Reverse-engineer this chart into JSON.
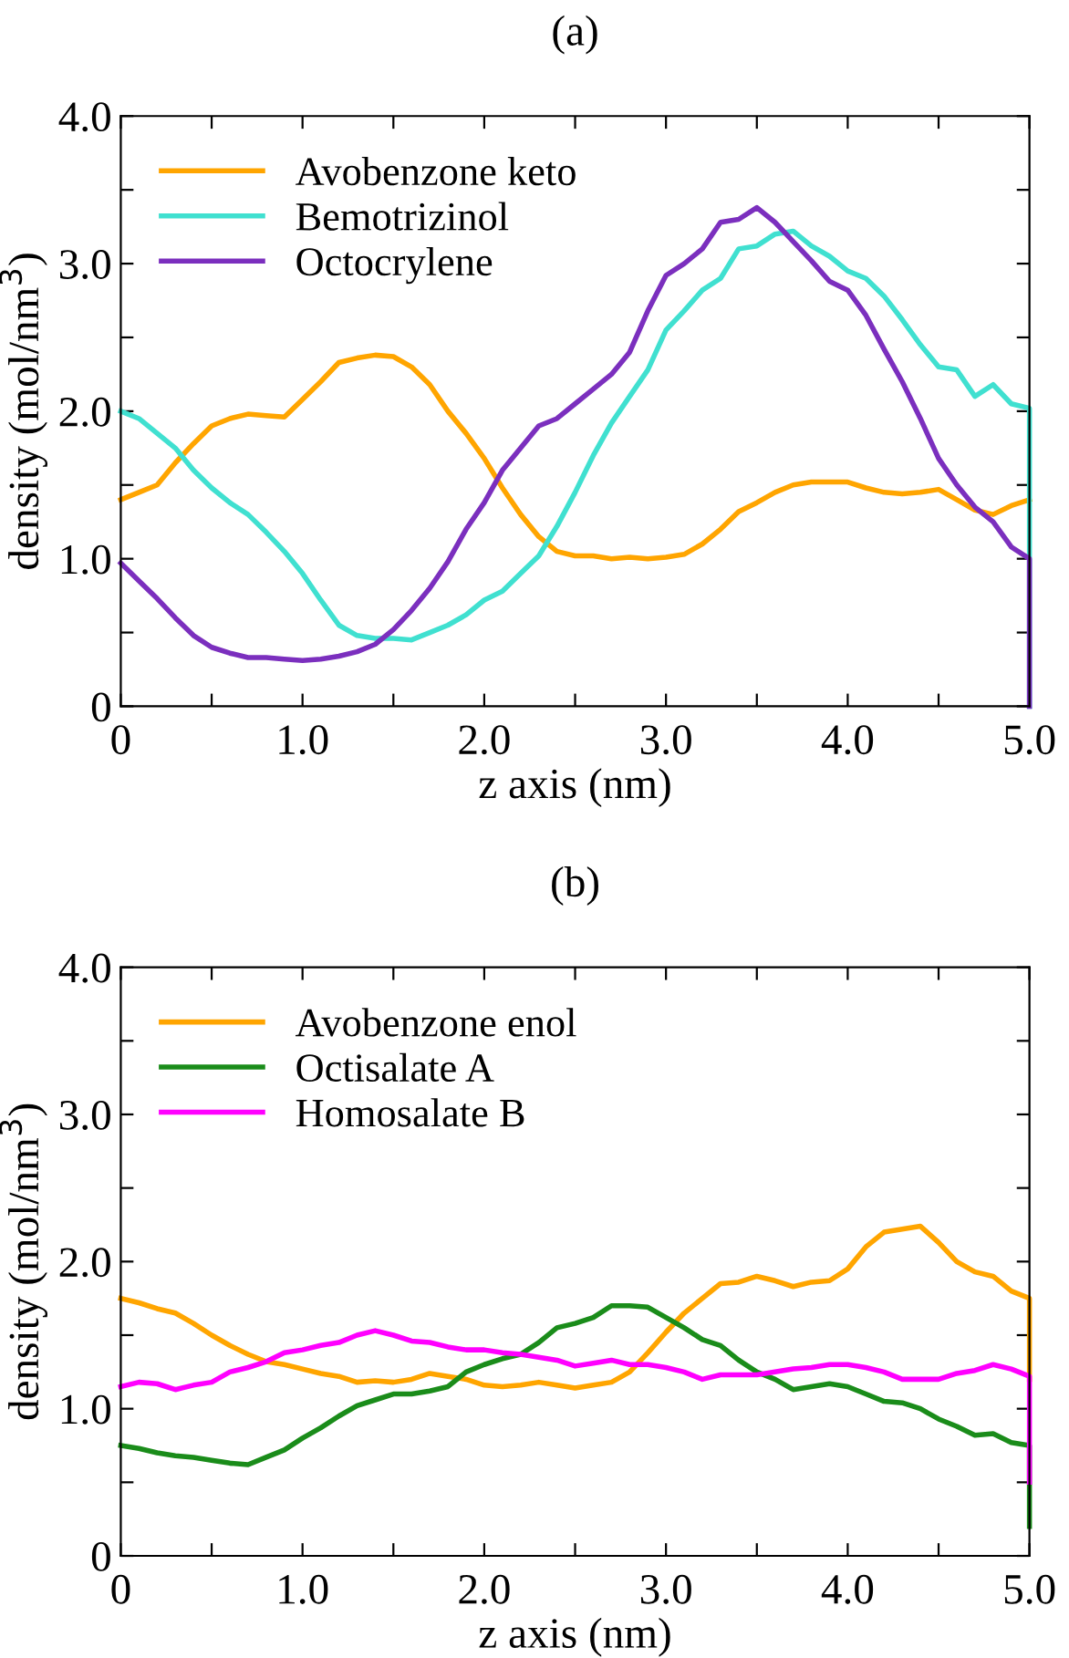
{
  "chart_data": [
    {
      "type": "line",
      "title": "(a)",
      "xlabel": "z axis (nm)",
      "ylabel": "density (mol/nm$^{3}$)",
      "x": [
        0,
        0.1,
        0.2,
        0.3,
        0.4,
        0.5,
        0.6,
        0.7,
        0.8,
        0.9,
        1.0,
        1.1,
        1.2,
        1.3,
        1.4,
        1.5,
        1.6,
        1.7,
        1.8,
        1.9,
        2.0,
        2.1,
        2.2,
        2.3,
        2.4,
        2.5,
        2.6,
        2.7,
        2.8,
        2.9,
        3.0,
        3.1,
        3.2,
        3.3,
        3.4,
        3.5,
        3.6,
        3.7,
        3.8,
        3.9,
        4.0,
        4.1,
        4.2,
        4.3,
        4.4,
        4.5,
        4.6,
        4.7,
        4.8,
        4.9,
        5.0,
        5.0
      ],
      "series": [
        {
          "name": "Avobenzone keto",
          "color": "#ffa500",
          "values": [
            1.4,
            1.45,
            1.5,
            1.65,
            1.78,
            1.9,
            1.95,
            1.98,
            1.97,
            1.96,
            2.08,
            2.2,
            2.33,
            2.36,
            2.38,
            2.37,
            2.3,
            2.18,
            2.0,
            1.85,
            1.68,
            1.48,
            1.3,
            1.15,
            1.05,
            1.02,
            1.02,
            1.0,
            1.01,
            1.0,
            1.01,
            1.03,
            1.1,
            1.2,
            1.32,
            1.38,
            1.45,
            1.5,
            1.52,
            1.52,
            1.52,
            1.48,
            1.45,
            1.44,
            1.45,
            1.47,
            1.4,
            1.33,
            1.3,
            1.36,
            1.4,
            1.4
          ]
        },
        {
          "name": "Bemotrizinol",
          "color": "#40e0d0",
          "values": [
            2.0,
            1.95,
            1.85,
            1.75,
            1.6,
            1.48,
            1.38,
            1.3,
            1.18,
            1.05,
            0.9,
            0.72,
            0.55,
            0.48,
            0.46,
            0.46,
            0.45,
            0.5,
            0.55,
            0.62,
            0.72,
            0.78,
            0.9,
            1.02,
            1.22,
            1.45,
            1.7,
            1.92,
            2.1,
            2.28,
            2.55,
            2.68,
            2.82,
            2.9,
            3.1,
            3.12,
            3.2,
            3.22,
            3.12,
            3.05,
            2.95,
            2.9,
            2.78,
            2.62,
            2.45,
            2.3,
            2.28,
            2.1,
            2.18,
            2.05,
            2.02,
            0
          ]
        },
        {
          "name": "Octocrylene",
          "color": "#7b2fbe",
          "values": [
            0.97,
            0.85,
            0.73,
            0.6,
            0.48,
            0.4,
            0.36,
            0.33,
            0.33,
            0.32,
            0.31,
            0.32,
            0.34,
            0.37,
            0.42,
            0.52,
            0.65,
            0.8,
            0.98,
            1.2,
            1.38,
            1.6,
            1.75,
            1.9,
            1.95,
            2.05,
            2.15,
            2.25,
            2.4,
            2.68,
            2.92,
            3.0,
            3.1,
            3.28,
            3.3,
            3.38,
            3.28,
            3.15,
            3.02,
            2.88,
            2.82,
            2.65,
            2.42,
            2.2,
            1.95,
            1.68,
            1.5,
            1.35,
            1.25,
            1.08,
            1.0,
            0
          ]
        }
      ],
      "xlim": [
        0,
        5.0
      ],
      "ylim": [
        0,
        4.0
      ],
      "xticks": [
        0,
        {
          "value": 0.5,
          "label": null
        },
        {
          "value": 1.0,
          "label": "1.0"
        },
        {
          "value": 1.5,
          "label": null
        },
        {
          "value": 2.0,
          "label": "2.0"
        },
        {
          "value": 2.5,
          "label": null
        },
        {
          "value": 3.0,
          "label": "3.0"
        },
        {
          "value": 3.5,
          "label": null
        },
        {
          "value": 4.0,
          "label": "4.0"
        },
        {
          "value": 4.5,
          "label": null
        },
        {
          "value": 5.0,
          "label": "5.0"
        }
      ],
      "yticks": [
        0,
        {
          "value": 0.5,
          "label": null
        },
        {
          "value": 1.0,
          "label": "1.0"
        },
        {
          "value": 1.5,
          "label": null
        },
        {
          "value": 2.0,
          "label": "2.0"
        },
        {
          "value": 2.5,
          "label": null
        },
        {
          "value": 3.0,
          "label": "3.0"
        },
        {
          "value": 3.5,
          "label": null
        },
        {
          "value": 4.0,
          "label": "4.0"
        }
      ],
      "legend": "top left",
      "grid": false,
      "line_style": "solid",
      "marker": "none"
    },
    {
      "type": "line",
      "title": "(b)",
      "xlabel": "z axis (nm)",
      "ylabel": "density (mol/nm$^{3}$)",
      "x": [
        0,
        0.1,
        0.2,
        0.3,
        0.4,
        0.5,
        0.6,
        0.7,
        0.8,
        0.9,
        1.0,
        1.1,
        1.2,
        1.3,
        1.4,
        1.5,
        1.6,
        1.7,
        1.8,
        1.9,
        2.0,
        2.1,
        2.2,
        2.3,
        2.4,
        2.5,
        2.6,
        2.7,
        2.8,
        2.9,
        3.0,
        3.1,
        3.2,
        3.3,
        3.4,
        3.5,
        3.6,
        3.7,
        3.8,
        3.9,
        4.0,
        4.1,
        4.2,
        4.3,
        4.4,
        4.5,
        4.6,
        4.7,
        4.8,
        4.9,
        5.0,
        5.0
      ],
      "series": [
        {
          "name": "Avobenzone enol",
          "color": "#ffa500",
          "values": [
            1.75,
            1.72,
            1.68,
            1.65,
            1.58,
            1.5,
            1.43,
            1.37,
            1.32,
            1.3,
            1.27,
            1.24,
            1.22,
            1.18,
            1.19,
            1.18,
            1.2,
            1.24,
            1.22,
            1.2,
            1.16,
            1.15,
            1.16,
            1.18,
            1.16,
            1.14,
            1.16,
            1.18,
            1.25,
            1.38,
            1.52,
            1.65,
            1.75,
            1.85,
            1.86,
            1.9,
            1.87,
            1.83,
            1.86,
            1.87,
            1.95,
            2.1,
            2.2,
            2.22,
            2.24,
            2.13,
            2.0,
            1.93,
            1.9,
            1.8,
            1.75,
            1.2
          ]
        },
        {
          "name": "Octisalate A",
          "color": "#1a8c1a",
          "values": [
            0.75,
            0.73,
            0.7,
            0.68,
            0.67,
            0.65,
            0.63,
            0.62,
            0.67,
            0.72,
            0.8,
            0.87,
            0.95,
            1.02,
            1.06,
            1.1,
            1.1,
            1.12,
            1.15,
            1.25,
            1.3,
            1.34,
            1.37,
            1.45,
            1.55,
            1.58,
            1.62,
            1.7,
            1.7,
            1.69,
            1.62,
            1.55,
            1.47,
            1.43,
            1.33,
            1.25,
            1.2,
            1.13,
            1.15,
            1.17,
            1.15,
            1.1,
            1.05,
            1.04,
            1.0,
            0.93,
            0.88,
            0.82,
            0.83,
            0.77,
            0.75,
            0.2
          ]
        },
        {
          "name": "Homosalate B",
          "color": "#ff00ff",
          "values": [
            1.15,
            1.18,
            1.17,
            1.13,
            1.16,
            1.18,
            1.25,
            1.28,
            1.32,
            1.38,
            1.4,
            1.43,
            1.45,
            1.5,
            1.53,
            1.5,
            1.46,
            1.45,
            1.42,
            1.4,
            1.4,
            1.38,
            1.37,
            1.35,
            1.33,
            1.29,
            1.31,
            1.33,
            1.3,
            1.3,
            1.28,
            1.25,
            1.2,
            1.23,
            1.23,
            1.23,
            1.25,
            1.27,
            1.28,
            1.3,
            1.3,
            1.28,
            1.25,
            1.2,
            1.2,
            1.2,
            1.24,
            1.26,
            1.3,
            1.27,
            1.22,
            0.5
          ]
        }
      ],
      "xlim": [
        0,
        5.0
      ],
      "ylim": [
        0,
        4.0
      ],
      "xticks": [
        0,
        {
          "value": 0.5,
          "label": null
        },
        {
          "value": 1.0,
          "label": "1.0"
        },
        {
          "value": 1.5,
          "label": null
        },
        {
          "value": 2.0,
          "label": "2.0"
        },
        {
          "value": 2.5,
          "label": null
        },
        {
          "value": 3.0,
          "label": "3.0"
        },
        {
          "value": 3.5,
          "label": null
        },
        {
          "value": 4.0,
          "label": "4.0"
        },
        {
          "value": 4.5,
          "label": null
        },
        {
          "value": 5.0,
          "label": "5.0"
        }
      ],
      "yticks": [
        0,
        {
          "value": 0.5,
          "label": null
        },
        {
          "value": 1.0,
          "label": "1.0"
        },
        {
          "value": 1.5,
          "label": null
        },
        {
          "value": 2.0,
          "label": "2.0"
        },
        {
          "value": 2.5,
          "label": null
        },
        {
          "value": 3.0,
          "label": "3.0"
        },
        {
          "value": 3.5,
          "label": null
        },
        {
          "value": 4.0,
          "label": "4.0"
        }
      ],
      "legend": "top left",
      "grid": false,
      "line_style": "solid",
      "marker": "none"
    }
  ]
}
